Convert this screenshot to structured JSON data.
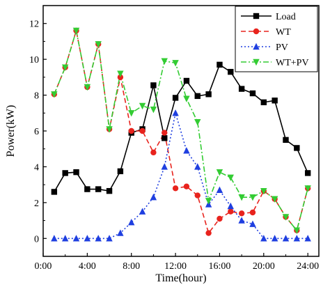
{
  "chart_data": {
    "type": "line",
    "xlabel": "Time(hour)",
    "ylabel": "Power(kW)",
    "xlim": [
      0,
      25
    ],
    "ylim": [
      -1,
      13
    ],
    "x_ticks": [
      {
        "value": 0,
        "label": "0:00"
      },
      {
        "value": 4,
        "label": "4:00"
      },
      {
        "value": 8,
        "label": "8:00"
      },
      {
        "value": 12,
        "label": "12:00"
      },
      {
        "value": 16,
        "label": "16:00"
      },
      {
        "value": 20,
        "label": "20:00"
      },
      {
        "value": 24,
        "label": "24:00"
      }
    ],
    "y_ticks": [
      0,
      2,
      4,
      6,
      8,
      10,
      12
    ],
    "grid": false,
    "legend_position": "top-right",
    "x": [
      1,
      2,
      3,
      4,
      5,
      6,
      7,
      8,
      9,
      10,
      11,
      12,
      13,
      14,
      15,
      16,
      17,
      18,
      19,
      20,
      21,
      22,
      23,
      24
    ],
    "series": [
      {
        "name": "Load",
        "color": "#000000",
        "dash": "solid",
        "marker": "square",
        "values": [
          2.6,
          3.65,
          3.7,
          2.75,
          2.75,
          2.65,
          3.75,
          5.9,
          6.1,
          8.55,
          5.6,
          7.85,
          8.8,
          7.95,
          8.05,
          9.7,
          9.3,
          8.35,
          8.1,
          7.6,
          7.7,
          5.5,
          5.05,
          3.65
        ]
      },
      {
        "name": "WT",
        "color": "#e8231d",
        "dash": "dashed",
        "marker": "circle",
        "values": [
          8.05,
          9.55,
          11.6,
          8.45,
          10.85,
          6.1,
          9.0,
          6.0,
          6.0,
          4.8,
          5.9,
          2.8,
          2.9,
          2.4,
          0.3,
          1.1,
          1.5,
          1.4,
          1.45,
          2.65,
          2.2,
          1.2,
          0.45,
          2.8
        ]
      },
      {
        "name": "PV",
        "color": "#1f3fe0",
        "dash": "dotted",
        "marker": "triangle-up",
        "values": [
          0,
          0,
          0,
          0,
          0,
          0,
          0.3,
          0.9,
          1.5,
          2.3,
          4.0,
          7.0,
          4.9,
          4.0,
          1.9,
          2.7,
          1.8,
          1.0,
          0.8,
          0,
          0,
          0,
          0,
          0
        ]
      },
      {
        "name": "WT+PV",
        "color": "#33cc33",
        "dash": "dashdot",
        "marker": "triangle-down",
        "values": [
          8.05,
          9.55,
          11.6,
          8.45,
          10.85,
          6.1,
          9.2,
          7.0,
          7.4,
          7.2,
          9.9,
          9.8,
          7.8,
          6.5,
          2.1,
          3.7,
          3.4,
          2.3,
          2.3,
          2.65,
          2.2,
          1.2,
          0.45,
          2.8
        ]
      }
    ]
  }
}
